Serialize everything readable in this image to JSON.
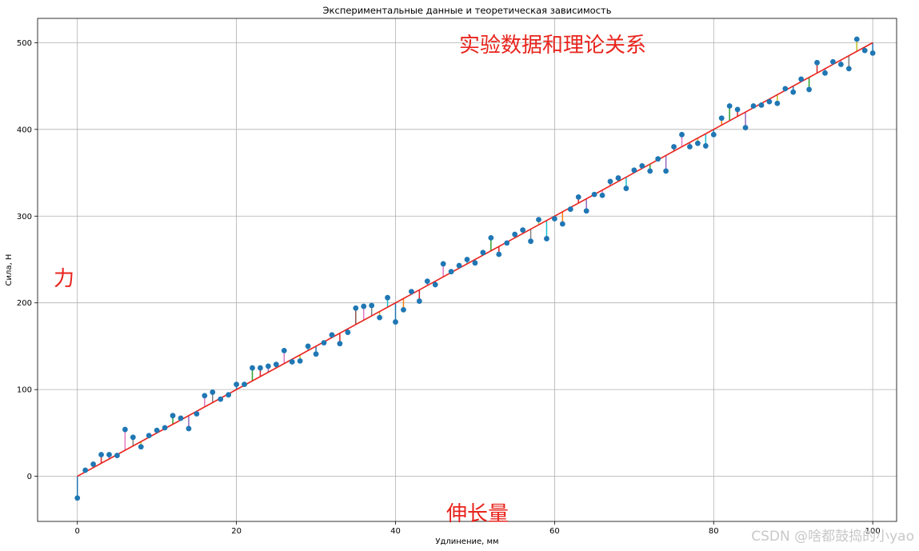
{
  "chart_data": {
    "type": "scatter",
    "title": "Экспериментальные данные и теоретическая зависимость",
    "xlabel": "Удлинение, мм",
    "ylabel": "Сила, Н",
    "xlim": [
      -5,
      103
    ],
    "ylim": [
      -52,
      528
    ],
    "xticks": [
      0,
      20,
      40,
      60,
      80,
      100
    ],
    "yticks": [
      0,
      100,
      200,
      300,
      400,
      500
    ],
    "grid": true,
    "series": [
      {
        "kind": "scatter",
        "color": "#1f77b4",
        "x": [
          0,
          1,
          2,
          3,
          4,
          5,
          6,
          7,
          8,
          9,
          10,
          11,
          12,
          13,
          14,
          15,
          16,
          17,
          18,
          19,
          20,
          21,
          22,
          23,
          24,
          25,
          26,
          27,
          28,
          29,
          30,
          31,
          32,
          33,
          34,
          35,
          36,
          37,
          38,
          39,
          40,
          41,
          42,
          43,
          44,
          45,
          46,
          47,
          48,
          49,
          50,
          51,
          52,
          53,
          54,
          55,
          56,
          57,
          58,
          59,
          60,
          61,
          62,
          63,
          64,
          65,
          66,
          67,
          68,
          69,
          70,
          71,
          72,
          73,
          74,
          75,
          76,
          77,
          78,
          79,
          80,
          81,
          82,
          83,
          84,
          85,
          86,
          87,
          88,
          89,
          90,
          91,
          92,
          93,
          94,
          95,
          96,
          97,
          98,
          99,
          100
        ],
        "y": [
          -25,
          7,
          14,
          25,
          25,
          24,
          54,
          45,
          34,
          47,
          53,
          56,
          70,
          67,
          55,
          72,
          93,
          97,
          89,
          94,
          106,
          106,
          125,
          125,
          127,
          129,
          145,
          132,
          133,
          150,
          141,
          154,
          163,
          153,
          166,
          194,
          196,
          197,
          183,
          206,
          178,
          192,
          213,
          202,
          225,
          221,
          245,
          236,
          243,
          250,
          246,
          258,
          275,
          256,
          269,
          279,
          284,
          271,
          296,
          274,
          297,
          291,
          308,
          322,
          306,
          325,
          324,
          340,
          344,
          332,
          353,
          358,
          352,
          366,
          352,
          380,
          394,
          380,
          384,
          381,
          394,
          413,
          427,
          423,
          402,
          427,
          428,
          432,
          430,
          447,
          443,
          458,
          446,
          477,
          465,
          478,
          475,
          470,
          504,
          491,
          488
        ]
      },
      {
        "kind": "line",
        "color": "#e8231e",
        "x": [
          0,
          100
        ],
        "y": [
          0,
          500
        ]
      }
    ],
    "residual_colors": [
      "#1f77b4",
      "#ff7f0e",
      "#2ca02c",
      "#d62728",
      "#9467bd",
      "#8c564b",
      "#e377c2",
      "#7f7f7f",
      "#bcbd22",
      "#17becf"
    ]
  },
  "annotations": {
    "top_note": "实验数据和理论关系",
    "left_note": "力",
    "bottom_note": "伸长量",
    "watermark": "CSDN @啥都鼓捣的小yao"
  }
}
